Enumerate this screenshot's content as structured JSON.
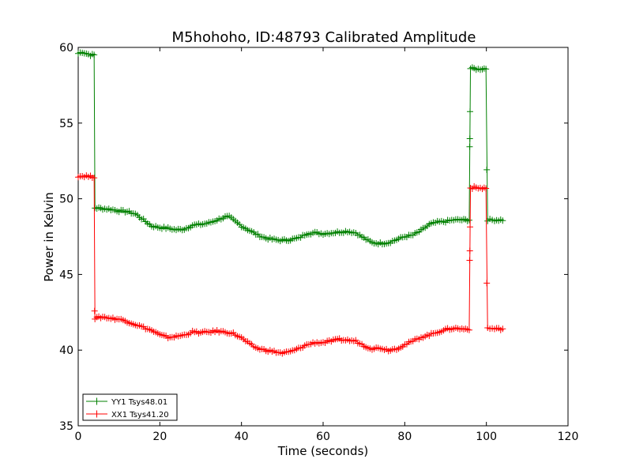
{
  "chart_data": {
    "type": "line",
    "title": "M5hohoho, ID:48793 Calibrated Amplitude",
    "xlabel": "Time (seconds)",
    "ylabel": "Power in Kelvin",
    "xlim": [
      0,
      120
    ],
    "ylim": [
      35,
      60
    ],
    "x_ticks": [
      "0",
      "20",
      "40",
      "60",
      "80",
      "100",
      "120"
    ],
    "y_ticks": [
      "35",
      "40",
      "45",
      "50",
      "55",
      "60"
    ],
    "grid": false,
    "legend_position": "lower-left",
    "series": [
      {
        "name": "YY1 Tsys48.01",
        "color": "#008000",
        "marker": "plus",
        "points": [
          [
            0,
            59.6
          ],
          [
            1,
            59.7
          ],
          [
            2,
            59.6
          ],
          [
            3,
            59.5
          ],
          [
            3.9,
            59.5
          ],
          [
            4.1,
            49.4
          ],
          [
            6,
            49.35
          ],
          [
            8,
            49.3
          ],
          [
            10,
            49.2
          ],
          [
            12,
            49.15
          ],
          [
            14,
            49.0
          ],
          [
            16,
            48.6
          ],
          [
            18,
            48.2
          ],
          [
            20,
            48.1
          ],
          [
            22,
            48.05
          ],
          [
            24,
            47.95
          ],
          [
            26,
            48.0
          ],
          [
            28,
            48.25
          ],
          [
            30,
            48.3
          ],
          [
            32,
            48.4
          ],
          [
            34,
            48.6
          ],
          [
            36,
            48.8
          ],
          [
            37,
            48.8
          ],
          [
            38,
            48.6
          ],
          [
            40,
            48.2
          ],
          [
            42,
            47.9
          ],
          [
            44,
            47.6
          ],
          [
            46,
            47.4
          ],
          [
            48,
            47.3
          ],
          [
            50,
            47.25
          ],
          [
            52,
            47.3
          ],
          [
            54,
            47.4
          ],
          [
            56,
            47.7
          ],
          [
            58,
            47.75
          ],
          [
            60,
            47.7
          ],
          [
            62,
            47.75
          ],
          [
            64,
            47.8
          ],
          [
            66,
            47.85
          ],
          [
            68,
            47.75
          ],
          [
            70,
            47.4
          ],
          [
            72,
            47.1
          ],
          [
            74,
            47.05
          ],
          [
            76,
            47.1
          ],
          [
            78,
            47.3
          ],
          [
            80,
            47.5
          ],
          [
            82,
            47.6
          ],
          [
            84,
            47.9
          ],
          [
            86,
            48.3
          ],
          [
            88,
            48.45
          ],
          [
            90,
            48.5
          ],
          [
            92,
            48.6
          ],
          [
            94,
            48.6
          ],
          [
            95.8,
            48.6
          ],
          [
            96.1,
            58.6
          ],
          [
            97,
            58.6
          ],
          [
            98,
            58.55
          ],
          [
            99,
            58.6
          ],
          [
            99.9,
            58.6
          ],
          [
            100.3,
            48.6
          ],
          [
            102,
            48.6
          ],
          [
            104,
            48.6
          ]
        ],
        "transition_points": [
          [
            95.9,
            53.4
          ],
          [
            95.95,
            54.0
          ],
          [
            96.0,
            55.7
          ],
          [
            100.1,
            51.9
          ]
        ]
      },
      {
        "name": "XX1 Tsys41.20",
        "color": "#ff0000",
        "marker": "plus",
        "points": [
          [
            0,
            51.5
          ],
          [
            1,
            51.5
          ],
          [
            2,
            51.5
          ],
          [
            3,
            51.45
          ],
          [
            3.9,
            51.45
          ],
          [
            4.1,
            42.1
          ],
          [
            6,
            42.2
          ],
          [
            8,
            42.1
          ],
          [
            10,
            42.05
          ],
          [
            12,
            41.9
          ],
          [
            14,
            41.7
          ],
          [
            16,
            41.5
          ],
          [
            18,
            41.3
          ],
          [
            20,
            41.0
          ],
          [
            22,
            40.85
          ],
          [
            24,
            40.9
          ],
          [
            26,
            41.0
          ],
          [
            28,
            41.2
          ],
          [
            30,
            41.15
          ],
          [
            32,
            41.2
          ],
          [
            34,
            41.25
          ],
          [
            36,
            41.2
          ],
          [
            38,
            41.1
          ],
          [
            40,
            40.8
          ],
          [
            42,
            40.4
          ],
          [
            44,
            40.1
          ],
          [
            46,
            40.0
          ],
          [
            48,
            39.9
          ],
          [
            50,
            39.8
          ],
          [
            52,
            39.9
          ],
          [
            54,
            40.1
          ],
          [
            56,
            40.35
          ],
          [
            58,
            40.5
          ],
          [
            60,
            40.5
          ],
          [
            62,
            40.6
          ],
          [
            64,
            40.7
          ],
          [
            66,
            40.65
          ],
          [
            68,
            40.6
          ],
          [
            70,
            40.3
          ],
          [
            72,
            40.1
          ],
          [
            74,
            40.15
          ],
          [
            76,
            40.0
          ],
          [
            78,
            40.1
          ],
          [
            80,
            40.35
          ],
          [
            82,
            40.6
          ],
          [
            84,
            40.85
          ],
          [
            86,
            41.0
          ],
          [
            88,
            41.2
          ],
          [
            90,
            41.35
          ],
          [
            92,
            41.45
          ],
          [
            94,
            41.4
          ],
          [
            95.8,
            41.4
          ],
          [
            96.1,
            50.7
          ],
          [
            97,
            50.75
          ],
          [
            98,
            50.7
          ],
          [
            99,
            50.7
          ],
          [
            99.9,
            50.7
          ],
          [
            100.3,
            41.45
          ],
          [
            102,
            41.4
          ],
          [
            104,
            41.4
          ]
        ],
        "transition_points": [
          [
            4.0,
            42.6
          ],
          [
            95.9,
            45.9
          ],
          [
            95.95,
            46.5
          ],
          [
            96.0,
            48.1
          ],
          [
            100.1,
            44.5
          ]
        ]
      }
    ]
  }
}
